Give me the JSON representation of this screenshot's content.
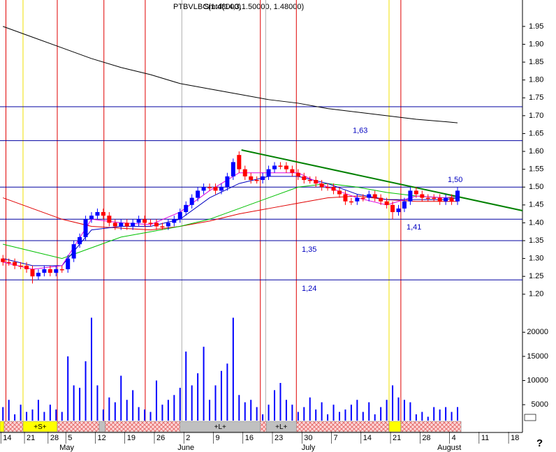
{
  "chart_data": {
    "type": "candlestick",
    "title": "PTBVLBC(1.48000)",
    "indicator_label": "Smtd(14,3,1.50000, 1.48000)",
    "help_label": "?",
    "categories": [
      "14",
      null,
      null,
      null,
      "21",
      null,
      null,
      null,
      "28",
      null,
      null,
      "5",
      null,
      null,
      null,
      null,
      "12",
      null,
      null,
      null,
      null,
      "19",
      null,
      null,
      null,
      null,
      "26",
      null,
      null,
      null,
      null,
      "2",
      null,
      null,
      null,
      null,
      "9",
      null,
      null,
      null,
      null,
      "16",
      null,
      null,
      null,
      null,
      "23",
      null,
      null,
      null,
      null,
      "30",
      null,
      null,
      null,
      null,
      "7",
      null,
      null,
      null,
      null,
      "14",
      null,
      null,
      null,
      null,
      "21",
      null,
      null,
      null,
      null,
      "28",
      null,
      null,
      null,
      null,
      "4",
      null,
      null,
      null,
      null,
      "11",
      null,
      null,
      null,
      null,
      "18"
    ],
    "months": [
      null,
      null,
      null,
      null,
      null,
      null,
      null,
      null,
      null,
      null,
      null,
      "May",
      null,
      null,
      null,
      null,
      null,
      null,
      null,
      null,
      null,
      null,
      null,
      null,
      null,
      null,
      null,
      null,
      null,
      null,
      null,
      "June",
      null,
      null,
      null,
      null,
      null,
      null,
      null,
      null,
      null,
      null,
      null,
      null,
      null,
      null,
      null,
      null,
      null,
      null,
      null,
      null,
      "July",
      null,
      null,
      null,
      null,
      null,
      null,
      null,
      null,
      null,
      null,
      null,
      null,
      null,
      null,
      null,
      null,
      null,
      null,
      null,
      null,
      null,
      null,
      "August",
      null,
      null,
      null,
      null,
      null,
      null,
      null,
      null,
      null,
      null,
      null
    ],
    "opens": [
      1.3,
      1.29,
      1.29,
      1.28,
      1.28,
      1.27,
      1.25,
      1.26,
      1.27,
      1.26,
      1.27,
      1.27,
      1.3,
      1.34,
      1.36,
      1.41,
      1.42,
      1.43,
      1.42,
      1.4,
      1.39,
      1.4,
      1.39,
      1.4,
      1.41,
      1.4,
      1.4,
      1.39,
      1.39,
      1.4,
      1.41,
      1.43,
      1.45,
      1.47,
      1.49,
      1.5,
      1.5,
      1.49,
      1.5,
      1.53,
      1.59,
      1.55,
      1.53,
      1.52,
      1.52,
      1.53,
      1.55,
      1.56,
      1.56,
      1.55,
      1.54,
      1.53,
      1.52,
      1.52,
      1.51,
      1.5,
      1.5,
      1.49,
      1.48,
      1.46,
      1.46,
      1.47,
      1.47,
      1.48,
      1.47,
      1.46,
      1.45,
      1.43,
      1.44,
      1.46,
      1.49,
      1.48,
      1.47,
      1.47,
      1.47,
      1.46,
      1.47,
      1.46,
      null,
      null,
      null,
      null,
      null,
      null,
      null,
      null,
      null
    ],
    "closes": [
      1.29,
      1.29,
      1.28,
      1.28,
      1.27,
      1.25,
      1.26,
      1.27,
      1.26,
      1.27,
      1.27,
      1.3,
      1.34,
      1.36,
      1.41,
      1.42,
      1.43,
      1.42,
      1.4,
      1.39,
      1.4,
      1.39,
      1.4,
      1.41,
      1.4,
      1.4,
      1.39,
      1.39,
      1.4,
      1.41,
      1.43,
      1.45,
      1.47,
      1.49,
      1.5,
      1.5,
      1.49,
      1.5,
      1.53,
      1.57,
      1.55,
      1.53,
      1.52,
      1.52,
      1.53,
      1.55,
      1.56,
      1.56,
      1.55,
      1.54,
      1.53,
      1.52,
      1.52,
      1.51,
      1.5,
      1.5,
      1.49,
      1.48,
      1.46,
      1.46,
      1.47,
      1.47,
      1.48,
      1.47,
      1.46,
      1.45,
      1.43,
      1.44,
      1.46,
      1.49,
      1.48,
      1.47,
      1.47,
      1.47,
      1.46,
      1.47,
      1.46,
      1.49,
      null,
      null,
      null,
      null,
      null,
      null,
      null,
      null,
      null
    ],
    "highs": [
      1.31,
      1.3,
      1.3,
      1.29,
      1.29,
      1.28,
      1.27,
      1.28,
      1.28,
      1.28,
      1.28,
      1.31,
      1.35,
      1.37,
      1.42,
      1.43,
      1.44,
      1.44,
      1.43,
      1.41,
      1.41,
      1.41,
      1.41,
      1.42,
      1.42,
      1.41,
      1.41,
      1.4,
      1.41,
      1.42,
      1.44,
      1.46,
      1.48,
      1.5,
      1.51,
      1.51,
      1.51,
      1.51,
      1.54,
      1.58,
      1.6,
      1.56,
      1.54,
      1.53,
      1.54,
      1.56,
      1.57,
      1.57,
      1.57,
      1.56,
      1.55,
      1.54,
      1.53,
      1.53,
      1.52,
      1.51,
      1.51,
      1.5,
      1.49,
      1.47,
      1.48,
      1.48,
      1.49,
      1.49,
      1.48,
      1.47,
      1.46,
      1.45,
      1.47,
      1.5,
      1.5,
      1.49,
      1.48,
      1.48,
      1.48,
      1.48,
      1.48,
      1.5,
      null,
      null,
      null,
      null,
      null,
      null,
      null,
      null,
      null
    ],
    "lows": [
      1.28,
      1.28,
      1.27,
      1.27,
      1.26,
      1.23,
      1.24,
      1.25,
      1.25,
      1.25,
      1.26,
      1.26,
      1.29,
      1.33,
      1.35,
      1.4,
      1.41,
      1.41,
      1.39,
      1.38,
      1.38,
      1.38,
      1.38,
      1.39,
      1.39,
      1.39,
      1.38,
      1.38,
      1.38,
      1.39,
      1.4,
      1.42,
      1.44,
      1.46,
      1.48,
      1.49,
      1.48,
      1.48,
      1.49,
      1.52,
      1.54,
      1.52,
      1.51,
      1.51,
      1.51,
      1.52,
      1.54,
      1.55,
      1.54,
      1.53,
      1.52,
      1.51,
      1.51,
      1.5,
      1.49,
      1.49,
      1.48,
      1.47,
      1.45,
      1.45,
      1.45,
      1.46,
      1.46,
      1.46,
      1.45,
      1.44,
      1.41,
      1.42,
      1.43,
      1.45,
      1.47,
      1.46,
      1.46,
      1.46,
      1.45,
      1.45,
      1.45,
      1.45,
      null,
      null,
      null,
      null,
      null,
      null,
      null,
      null,
      null
    ],
    "volumes": [
      4500,
      6000,
      3000,
      5000,
      3500,
      4000,
      6000,
      3500,
      5000,
      4000,
      3500,
      15000,
      9000,
      8500,
      14000,
      23000,
      9000,
      4000,
      6500,
      5500,
      11000,
      6000,
      8000,
      4500,
      4000,
      3500,
      10000,
      5000,
      6000,
      7000,
      8500,
      16000,
      9000,
      11500,
      17000,
      6000,
      9000,
      12000,
      13500,
      23000,
      7000,
      5500,
      6000,
      4500,
      3000,
      5000,
      8000,
      9500,
      6000,
      5000,
      3500,
      4500,
      6500,
      4000,
      5500,
      3000,
      5000,
      3500,
      4000,
      5000,
      6000,
      3500,
      5500,
      3000,
      4500,
      6000,
      9000,
      6500,
      6000,
      5500,
      3000,
      3500,
      2500,
      4500,
      4000,
      4500,
      3500,
      4500,
      null,
      null,
      null,
      null,
      null,
      null,
      null,
      null,
      null
    ],
    "up_color": "#0000ff",
    "down_color": "#ff0000",
    "volume_color": "#0000ff",
    "xlim": [
      -0.5,
      88
    ],
    "ylim": [
      1.182,
      2.024
    ],
    "yticks": [
      {
        "value": 1.2,
        "label": "1.20"
      },
      1.25,
      {
        "value": 1.3,
        "label": "1.30"
      },
      1.35,
      {
        "value": 1.4,
        "label": "1.40"
      },
      1.45,
      {
        "value": 1.5,
        "label": "1.50"
      },
      1.55,
      {
        "value": 1.6,
        "label": "1.60"
      },
      1.65,
      {
        "value": 1.7,
        "label": "1.70"
      },
      1.75,
      {
        "value": 1.8,
        "label": "1.80"
      },
      1.85,
      {
        "value": 1.9,
        "label": "1.90"
      },
      1.95
    ],
    "y2lim": [
      1700,
      26400
    ],
    "y2ticks": [
      5000,
      10000,
      15000,
      20000
    ],
    "lines": [
      {
        "color": "#000000",
        "width": 1,
        "x": [
          0,
          5,
          10,
          15,
          20,
          25,
          30,
          35,
          40,
          45,
          50,
          55,
          60,
          65,
          70,
          75,
          77
        ],
        "values": [
          1.95,
          1.92,
          1.89,
          1.86,
          1.835,
          1.815,
          1.79,
          1.775,
          1.76,
          1.745,
          1.735,
          1.72,
          1.71,
          1.7,
          1.69,
          1.683,
          1.68
        ]
      },
      {
        "color": "#e00000",
        "width": 1,
        "x": [
          0,
          5,
          10,
          15,
          20,
          25,
          30,
          35,
          40,
          45,
          50,
          55,
          60,
          65,
          70,
          75,
          77
        ],
        "values": [
          1.47,
          1.44,
          1.41,
          1.39,
          1.385,
          1.38,
          1.39,
          1.405,
          1.425,
          1.44,
          1.455,
          1.47,
          1.475,
          1.465,
          1.46,
          1.46,
          1.46
        ]
      },
      {
        "color": "#00c000",
        "width": 1,
        "x": [
          0,
          5,
          10,
          15,
          20,
          25,
          30,
          35,
          40,
          45,
          50,
          55,
          60,
          65,
          70,
          75,
          77
        ],
        "values": [
          1.34,
          1.32,
          1.3,
          1.33,
          1.36,
          1.375,
          1.39,
          1.41,
          1.44,
          1.47,
          1.5,
          1.51,
          1.5,
          1.485,
          1.475,
          1.47,
          1.47
        ]
      },
      {
        "color": "#0000c0",
        "width": 1,
        "x": [
          0,
          5,
          10,
          15,
          20,
          25,
          30,
          35,
          40,
          45,
          50,
          55,
          60,
          65,
          70,
          75,
          77
        ],
        "values": [
          1.3,
          1.28,
          1.28,
          1.38,
          1.39,
          1.39,
          1.41,
          1.47,
          1.51,
          1.53,
          1.53,
          1.51,
          1.48,
          1.465,
          1.465,
          1.465,
          1.47
        ]
      },
      {
        "color": "#e000e0",
        "width": 1,
        "x": [
          0,
          5,
          10,
          15,
          20,
          25,
          30,
          35,
          40,
          45,
          50,
          55,
          60,
          65,
          70,
          75,
          77
        ],
        "values": [
          1.29,
          1.27,
          1.28,
          1.41,
          1.4,
          1.395,
          1.43,
          1.49,
          1.54,
          1.54,
          1.54,
          1.5,
          1.47,
          1.45,
          1.475,
          1.47,
          1.475
        ]
      },
      {
        "color": "#008000",
        "width": 2,
        "x": [
          40.4,
          88
        ],
        "values": [
          1.604,
          1.434
        ]
      }
    ],
    "level_color": "#0000a0",
    "levels": [
      {
        "value": 1.725
      },
      {
        "value": 1.63,
        "label": "1,63"
      },
      {
        "value": 1.5,
        "label": "1,50"
      },
      {
        "value": 1.41,
        "label": "1,41"
      },
      {
        "value": 1.35,
        "label": "1,35"
      },
      {
        "value": 1.24,
        "label": "1,24"
      }
    ],
    "event_lines": [
      {
        "color": "#e00000",
        "x": [
          0.5,
          9.2,
          17.1,
          24.1,
          43.6,
          49.7,
          67.4
        ]
      },
      {
        "color": "#f0e000",
        "x": [
          3.4,
          65.4
        ]
      },
      {
        "color": "#b0b0b0",
        "x": [
          30.3,
          44.5
        ]
      }
    ],
    "bands": [
      {
        "start": -0.5,
        "end": 0.2,
        "fill": "#ffff00"
      },
      {
        "start": 0.2,
        "end": 3.4,
        "fill": "hatch"
      },
      {
        "start": 3.4,
        "end": 9.2,
        "fill": "#ffff00",
        "label": "+S+"
      },
      {
        "start": 9.2,
        "end": 16.3,
        "fill": "hatch"
      },
      {
        "start": 16.3,
        "end": 17.3,
        "fill": "#c0c0c0"
      },
      {
        "start": 17.3,
        "end": 30.0,
        "fill": "hatch"
      },
      {
        "start": 30.0,
        "end": 43.6,
        "fill": "#c0c0c0",
        "label": "+L+"
      },
      {
        "start": 43.6,
        "end": 44.6,
        "fill": "hatch"
      },
      {
        "start": 44.6,
        "end": 49.7,
        "fill": "#c0c0c0",
        "label": "+L+"
      },
      {
        "start": 49.7,
        "end": 65.4,
        "fill": "hatch"
      },
      {
        "start": 65.4,
        "end": 67.4,
        "fill": "#ffff00"
      },
      {
        "start": 67.4,
        "end": 77.6,
        "fill": "hatch"
      }
    ]
  }
}
